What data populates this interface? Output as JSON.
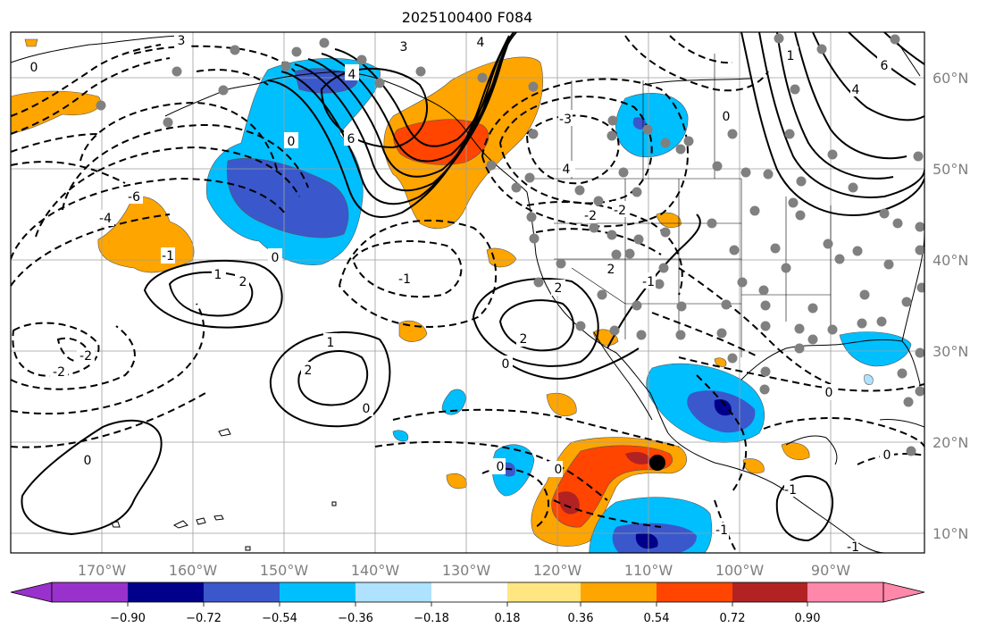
{
  "title": "2025100400 F084",
  "map": {
    "lon_ticks": [
      "170°W",
      "160°W",
      "150°W",
      "140°W",
      "130°W",
      "120°W",
      "110°W",
      "100°W",
      "90°W"
    ],
    "lat_ticks": [
      "60°N",
      "50°N",
      "40°N",
      "30°N",
      "20°N",
      "10°N"
    ],
    "contour_labels": [
      "3",
      "4",
      "-2",
      "-1",
      "0",
      "1",
      "2",
      "6",
      "-4",
      "-6",
      "-3"
    ],
    "colors": {
      "neg_extreme": "#9932cc",
      "neg_090": "#00008b",
      "neg_072": "#3a58cc",
      "neg_054": "#00bfff",
      "neg_036": "#aee2ff",
      "pos_036": "#ffe680",
      "pos_054": "#ffa500",
      "pos_072": "#ff4500",
      "pos_090": "#b22222",
      "pos_extreme": "#ff88aa",
      "station_dot": "#808080"
    }
  },
  "colorbar": {
    "ticks": [
      "−0.90",
      "−0.72",
      "−0.54",
      "−0.36",
      "−0.18",
      "0.18",
      "0.36",
      "0.54",
      "0.72",
      "0.90"
    ]
  }
}
